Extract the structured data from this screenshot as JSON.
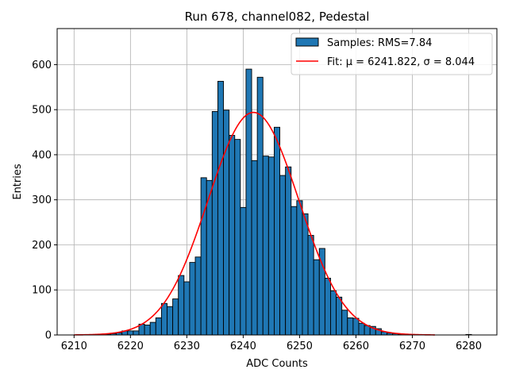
{
  "chart_data": {
    "type": "bar",
    "title": "Run 678, channel082, Pedestal",
    "xlabel": "ADC Counts",
    "ylabel": "Entries",
    "xlim": [
      6207,
      6285
    ],
    "ylim": [
      0,
      680
    ],
    "xticks": [
      6210,
      6220,
      6230,
      6240,
      6250,
      6260,
      6270,
      6280
    ],
    "yticks": [
      0,
      100,
      200,
      300,
      400,
      500,
      600
    ],
    "grid": true,
    "legend_position": "top-right",
    "bar_color": "#1f77b4",
    "fit_color": "#ff0000",
    "histogram": {
      "name": "Samples: RMS=7.84",
      "bin_width": 1,
      "bins": [
        {
          "x": 6214,
          "y": 1
        },
        {
          "x": 6215,
          "y": 1
        },
        {
          "x": 6216,
          "y": 2
        },
        {
          "x": 6217,
          "y": 3
        },
        {
          "x": 6218,
          "y": 5
        },
        {
          "x": 6219,
          "y": 9
        },
        {
          "x": 6220,
          "y": 9
        },
        {
          "x": 6221,
          "y": 9
        },
        {
          "x": 6222,
          "y": 24
        },
        {
          "x": 6223,
          "y": 22
        },
        {
          "x": 6224,
          "y": 28
        },
        {
          "x": 6225,
          "y": 38
        },
        {
          "x": 6226,
          "y": 70
        },
        {
          "x": 6227,
          "y": 63
        },
        {
          "x": 6228,
          "y": 80
        },
        {
          "x": 6229,
          "y": 132
        },
        {
          "x": 6230,
          "y": 118
        },
        {
          "x": 6231,
          "y": 161
        },
        {
          "x": 6232,
          "y": 173
        },
        {
          "x": 6233,
          "y": 349
        },
        {
          "x": 6234,
          "y": 343
        },
        {
          "x": 6235,
          "y": 496
        },
        {
          "x": 6236,
          "y": 563
        },
        {
          "x": 6237,
          "y": 499
        },
        {
          "x": 6238,
          "y": 443
        },
        {
          "x": 6239,
          "y": 434
        },
        {
          "x": 6240,
          "y": 283
        },
        {
          "x": 6241,
          "y": 590
        },
        {
          "x": 6242,
          "y": 387
        },
        {
          "x": 6243,
          "y": 572
        },
        {
          "x": 6244,
          "y": 397
        },
        {
          "x": 6245,
          "y": 395
        },
        {
          "x": 6246,
          "y": 461
        },
        {
          "x": 6247,
          "y": 354
        },
        {
          "x": 6248,
          "y": 373
        },
        {
          "x": 6249,
          "y": 285
        },
        {
          "x": 6250,
          "y": 298
        },
        {
          "x": 6251,
          "y": 269
        },
        {
          "x": 6252,
          "y": 221
        },
        {
          "x": 6253,
          "y": 167
        },
        {
          "x": 6254,
          "y": 192
        },
        {
          "x": 6255,
          "y": 126
        },
        {
          "x": 6256,
          "y": 98
        },
        {
          "x": 6257,
          "y": 84
        },
        {
          "x": 6258,
          "y": 55
        },
        {
          "x": 6259,
          "y": 38
        },
        {
          "x": 6260,
          "y": 37
        },
        {
          "x": 6261,
          "y": 26
        },
        {
          "x": 6262,
          "y": 21
        },
        {
          "x": 6263,
          "y": 19
        },
        {
          "x": 6264,
          "y": 14
        },
        {
          "x": 6265,
          "y": 7
        },
        {
          "x": 6266,
          "y": 4
        },
        {
          "x": 6267,
          "y": 3
        },
        {
          "x": 6268,
          "y": 1
        },
        {
          "x": 6269,
          "y": 1
        },
        {
          "x": 6270,
          "y": 1
        },
        {
          "x": 6271,
          "y": 0
        },
        {
          "x": 6272,
          "y": 1
        },
        {
          "x": 6273,
          "y": 0
        },
        {
          "x": 6280,
          "y": 1
        }
      ]
    },
    "fit": {
      "name": "Fit: μ = 6241.822, σ = 8.044",
      "function": "gaussian",
      "mu": 6241.822,
      "sigma": 8.044,
      "amplitude": 494,
      "x_range": [
        6210,
        6274
      ]
    }
  }
}
